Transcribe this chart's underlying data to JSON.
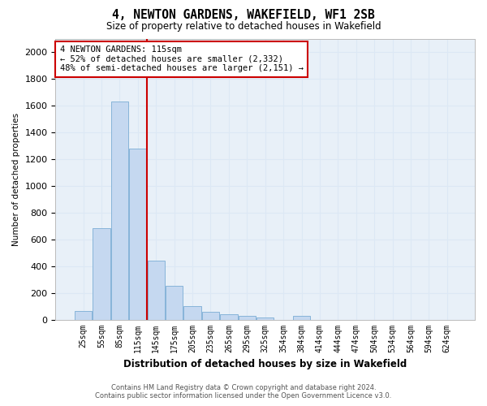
{
  "title": "4, NEWTON GARDENS, WAKEFIELD, WF1 2SB",
  "subtitle": "Size of property relative to detached houses in Wakefield",
  "xlabel": "Distribution of detached houses by size in Wakefield",
  "ylabel": "Number of detached properties",
  "categories": [
    "25sqm",
    "55sqm",
    "85sqm",
    "115sqm",
    "145sqm",
    "175sqm",
    "205sqm",
    "235sqm",
    "265sqm",
    "295sqm",
    "325sqm",
    "354sqm",
    "384sqm",
    "414sqm",
    "444sqm",
    "474sqm",
    "504sqm",
    "534sqm",
    "564sqm",
    "594sqm",
    "624sqm"
  ],
  "values": [
    65,
    680,
    1630,
    1280,
    440,
    250,
    100,
    60,
    40,
    25,
    15,
    0,
    30,
    0,
    0,
    0,
    0,
    0,
    0,
    0,
    0
  ],
  "bar_color": "#c5d8f0",
  "bar_edge_color": "#7aadd4",
  "highlight_index": 3,
  "red_line_color": "#cc0000",
  "annotation_line1": "4 NEWTON GARDENS: 115sqm",
  "annotation_line2": "← 52% of detached houses are smaller (2,332)",
  "annotation_line3": "48% of semi-detached houses are larger (2,151) →",
  "annotation_box_color": "#ffffff",
  "annotation_box_edge": "#cc0000",
  "ylim": [
    0,
    2100
  ],
  "yticks": [
    0,
    200,
    400,
    600,
    800,
    1000,
    1200,
    1400,
    1600,
    1800,
    2000
  ],
  "grid_color": "#dce8f5",
  "bg_color": "#e8f0f8",
  "footer1": "Contains HM Land Registry data © Crown copyright and database right 2024.",
  "footer2": "Contains public sector information licensed under the Open Government Licence v3.0."
}
